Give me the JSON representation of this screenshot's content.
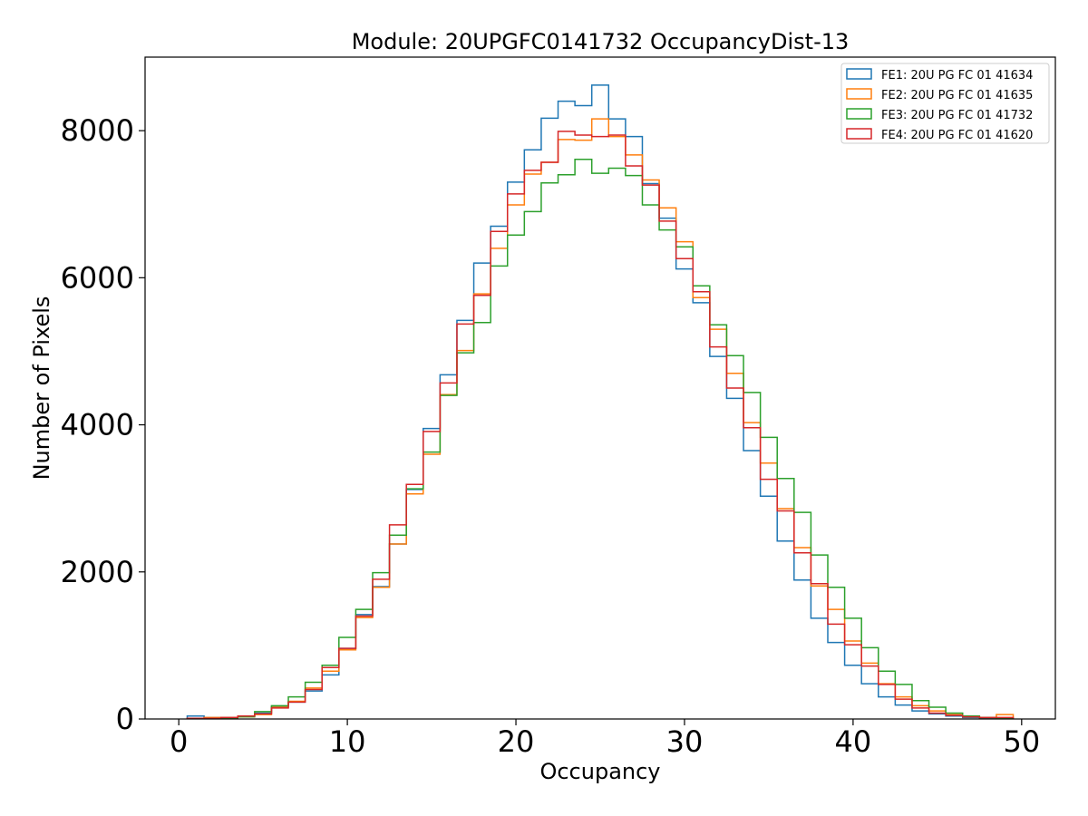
{
  "chart_data": {
    "type": "step histogram",
    "title": "Module: 20UPGFC0141732 OccupancyDist-13",
    "xlabel": "Occupancy",
    "ylabel": "Number of Pixels",
    "xlim": [
      -2,
      52
    ],
    "ylim": [
      0,
      9000
    ],
    "xticks": [
      0,
      10,
      20,
      30,
      40,
      50
    ],
    "yticks": [
      0,
      2000,
      4000,
      6000,
      8000
    ],
    "grid": false,
    "legend_position": "top-right",
    "bin_edges": [
      0.5,
      1.5,
      2.5,
      3.5,
      4.5,
      5.5,
      6.5,
      7.5,
      8.5,
      9.5,
      10.5,
      11.5,
      12.5,
      13.5,
      14.5,
      15.5,
      16.5,
      17.5,
      18.5,
      19.5,
      20.5,
      21.5,
      22.5,
      23.5,
      24.5,
      25.5,
      26.5,
      27.5,
      28.5,
      29.5,
      30.5,
      31.5,
      32.5,
      33.5,
      34.5,
      35.5,
      36.5,
      37.5,
      38.5,
      39.5,
      40.5,
      41.5,
      42.5,
      43.5,
      44.5,
      45.5,
      46.5,
      47.5,
      48.5,
      49.5
    ],
    "series": [
      {
        "name": "FE1: 20U PG FC 01 41634",
        "color": "#1f77b4",
        "values": [
          40,
          20,
          20,
          40,
          80,
          170,
          230,
          380,
          600,
          960,
          1420,
          1800,
          2380,
          3120,
          3950,
          4680,
          5420,
          6200,
          6700,
          7300,
          7740,
          8170,
          8400,
          8340,
          8620,
          8160,
          7920,
          7280,
          6810,
          6120,
          5660,
          4930,
          4360,
          3650,
          3030,
          2420,
          1890,
          1370,
          1040,
          730,
          480,
          300,
          190,
          110,
          70,
          40,
          20,
          10,
          10
        ]
      },
      {
        "name": "FE2: 20U PG FC 01 41635",
        "color": "#ff7f0e",
        "values": [
          10,
          20,
          20,
          30,
          60,
          160,
          240,
          420,
          650,
          940,
          1380,
          1790,
          2380,
          3060,
          3600,
          4410,
          5010,
          5780,
          6400,
          6990,
          7410,
          7570,
          7880,
          7870,
          8160,
          7920,
          7670,
          7330,
          6950,
          6490,
          5730,
          5300,
          4700,
          4030,
          3480,
          2860,
          2330,
          1810,
          1490,
          1060,
          760,
          480,
          300,
          180,
          110,
          60,
          30,
          20,
          60
        ]
      },
      {
        "name": "FE3: 20U PG FC 01 41732",
        "color": "#2ca02c",
        "values": [
          10,
          10,
          10,
          30,
          100,
          180,
          300,
          500,
          730,
          1110,
          1490,
          1990,
          2500,
          3130,
          3630,
          4400,
          4980,
          5390,
          6160,
          6580,
          6900,
          7290,
          7400,
          7610,
          7420,
          7490,
          7390,
          6990,
          6650,
          6420,
          5890,
          5360,
          4940,
          4440,
          3830,
          3270,
          2810,
          2230,
          1790,
          1370,
          970,
          650,
          470,
          250,
          160,
          80,
          40,
          20,
          10
        ]
      },
      {
        "name": "FE4: 20U PG FC 01 41620",
        "color": "#d62728",
        "values": [
          10,
          10,
          20,
          40,
          70,
          150,
          230,
          400,
          700,
          960,
          1400,
          1900,
          2640,
          3190,
          3910,
          4570,
          5370,
          5760,
          6630,
          7140,
          7460,
          7570,
          7990,
          7940,
          7920,
          7940,
          7520,
          7260,
          6770,
          6260,
          5810,
          5060,
          4500,
          3960,
          3260,
          2830,
          2260,
          1840,
          1290,
          1010,
          720,
          470,
          270,
          150,
          80,
          50,
          30,
          20,
          20
        ]
      }
    ]
  }
}
